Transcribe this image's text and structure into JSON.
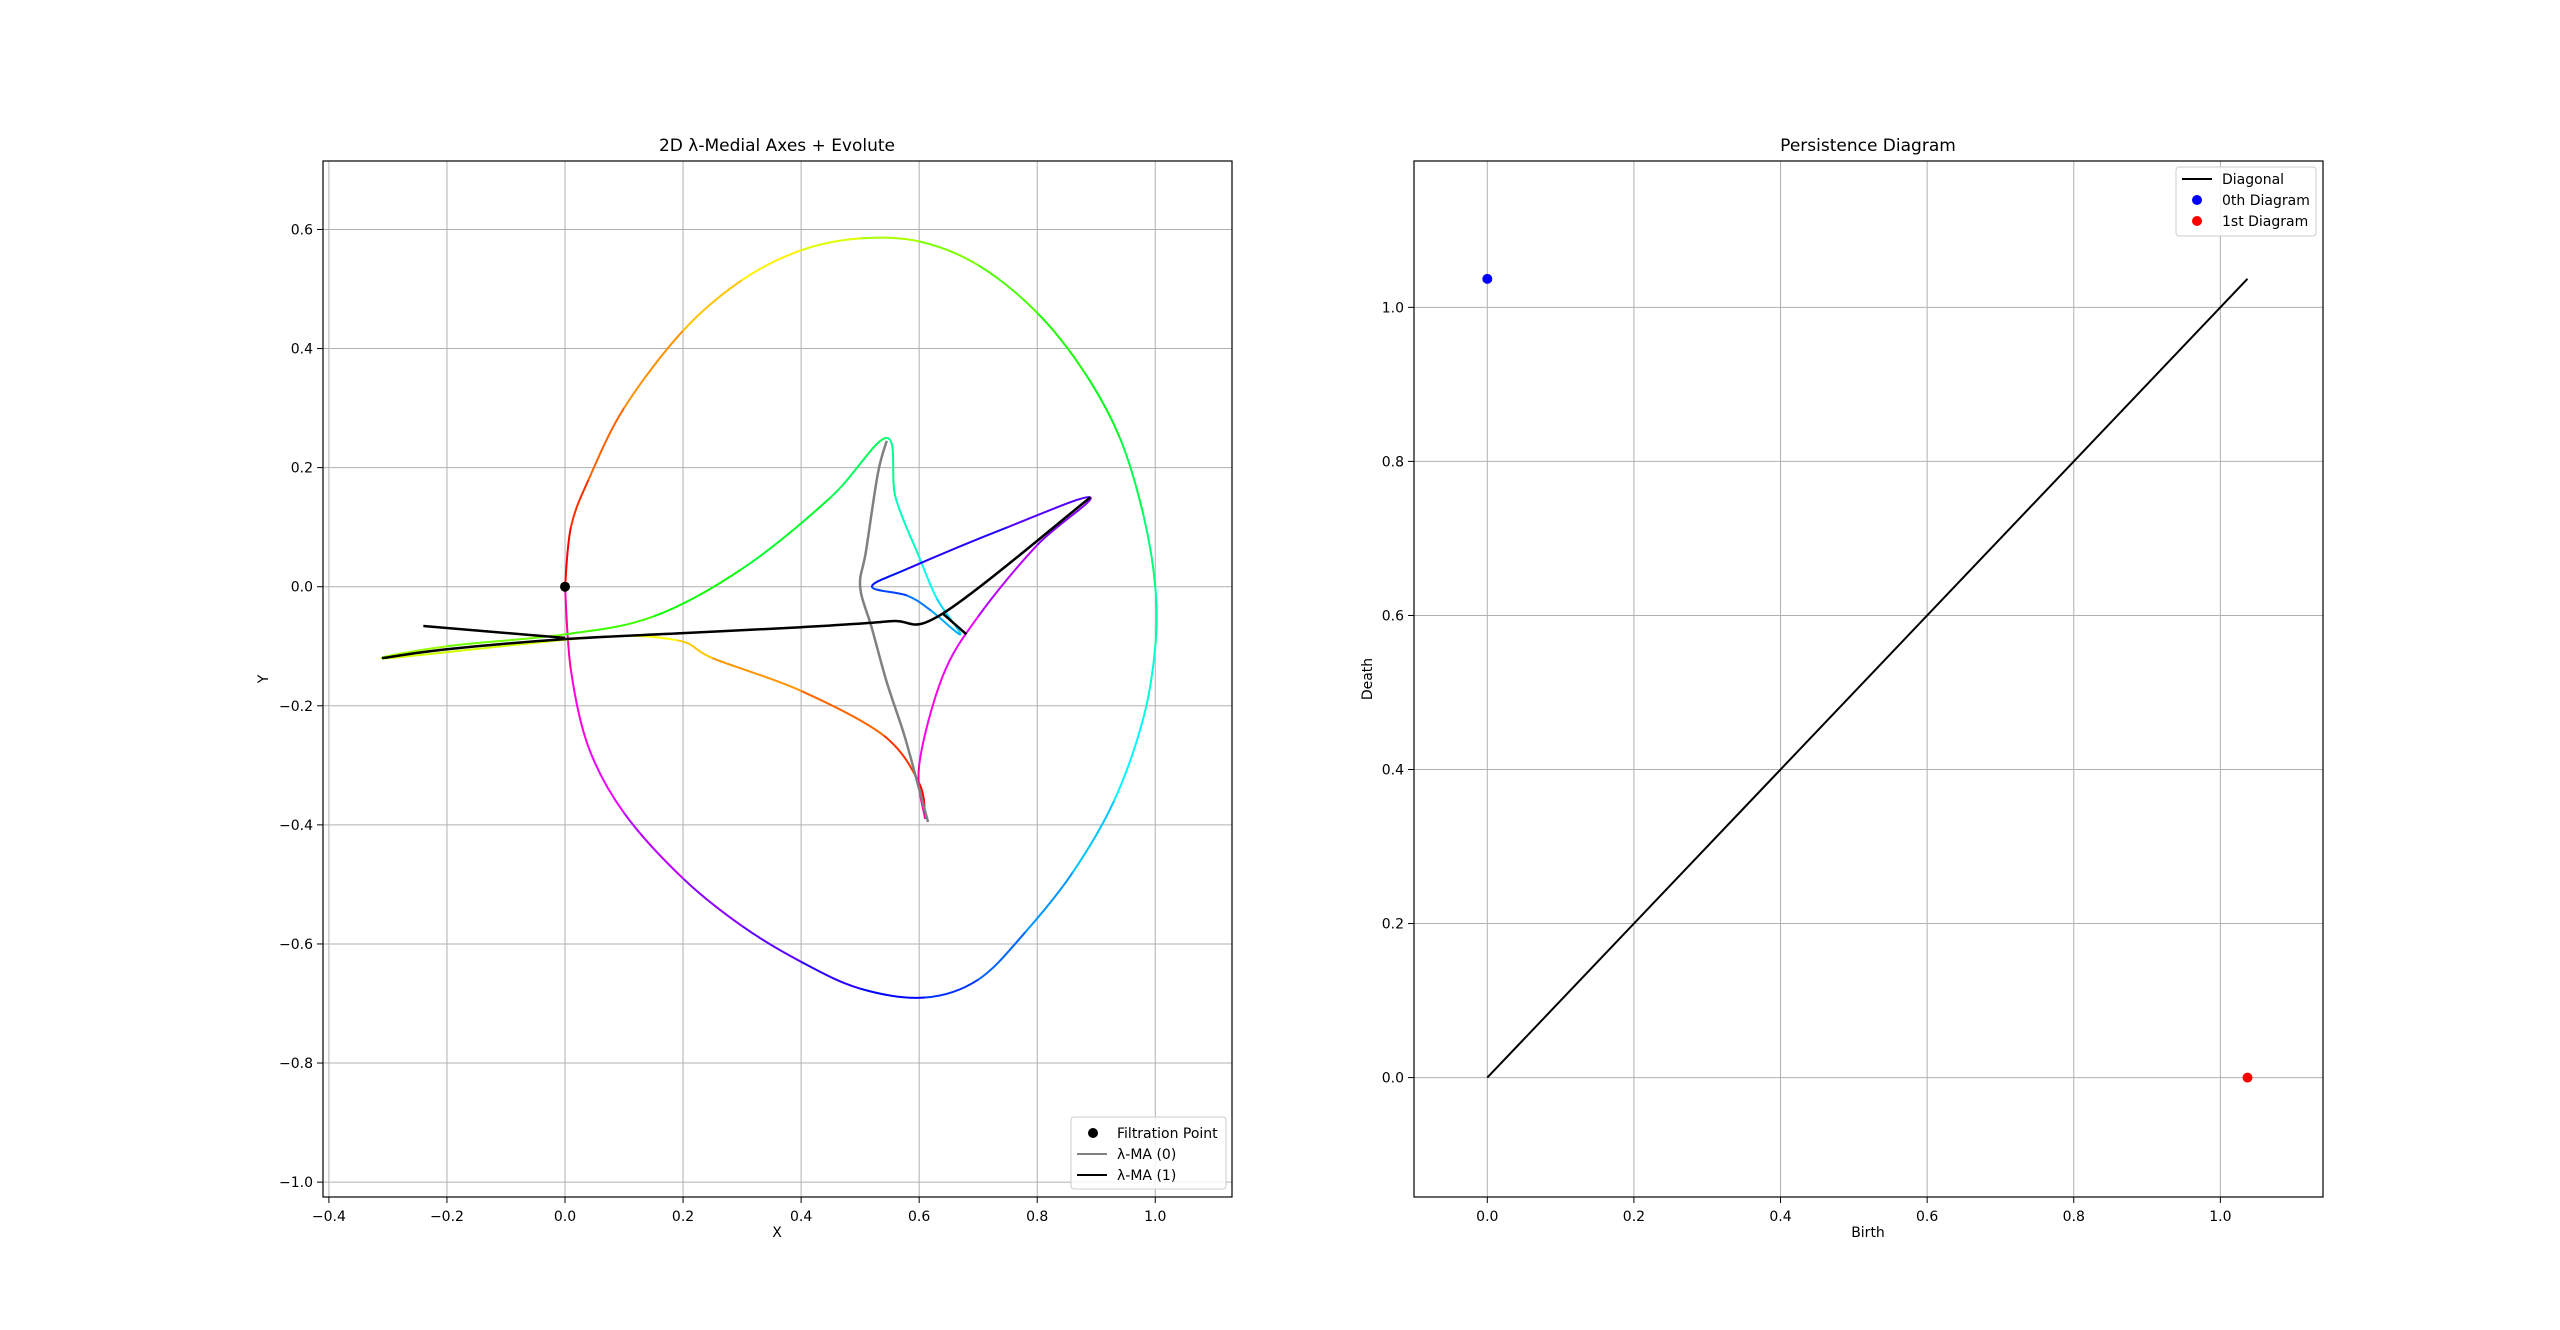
{
  "chart_data": [
    {
      "type": "line",
      "title": "2D λ-Medial Axes + Evolute",
      "xlabel": "X",
      "ylabel": "Y",
      "xlim": [
        -0.41,
        1.13
      ],
      "ylim": [
        -1.025,
        0.715
      ],
      "xticks": [
        -0.4,
        -0.2,
        0.0,
        0.2,
        0.4,
        0.6,
        0.8,
        1.0
      ],
      "xtick_labels": [
        "−0.4",
        "−0.2",
        "0.0",
        "0.2",
        "0.4",
        "0.6",
        "0.8",
        "1.0"
      ],
      "yticks": [
        -1.0,
        -0.8,
        -0.6,
        -0.4,
        -0.2,
        0.0,
        0.2,
        0.4,
        0.6
      ],
      "ytick_labels": [
        "−1.0",
        "−0.8",
        "−0.6",
        "−0.4",
        "−0.2",
        "0.0",
        "0.2",
        "0.4",
        "0.6"
      ],
      "grid": true,
      "legend_position": "lower-right",
      "legend": [
        {
          "label": "Filtration Point",
          "marker": "dot",
          "color": "#000000"
        },
        {
          "label": "λ-MA (0)",
          "marker": "line",
          "color": "#808080"
        },
        {
          "label": "λ-MA (1)",
          "marker": "line",
          "color": "#000000"
        }
      ],
      "curve": {
        "name": "curve",
        "coloring": "hue-gradient",
        "points": [
          [
            0.0,
            0.0
          ],
          [
            0.01,
            0.1
          ],
          [
            0.04,
            0.18
          ],
          [
            0.1,
            0.3
          ],
          [
            0.2,
            0.43
          ],
          [
            0.3,
            0.515
          ],
          [
            0.4,
            0.565
          ],
          [
            0.5,
            0.585
          ],
          [
            0.6,
            0.58
          ],
          [
            0.7,
            0.54
          ],
          [
            0.8,
            0.46
          ],
          [
            0.88,
            0.36
          ],
          [
            0.94,
            0.25
          ],
          [
            0.98,
            0.12
          ],
          [
            1.0,
            0.0
          ],
          [
            1.0,
            -0.1
          ],
          [
            0.98,
            -0.22
          ],
          [
            0.93,
            -0.36
          ],
          [
            0.86,
            -0.48
          ],
          [
            0.78,
            -0.58
          ],
          [
            0.7,
            -0.66
          ],
          [
            0.61,
            -0.69
          ],
          [
            0.5,
            -0.675
          ],
          [
            0.4,
            -0.63
          ],
          [
            0.3,
            -0.57
          ],
          [
            0.2,
            -0.49
          ],
          [
            0.1,
            -0.38
          ],
          [
            0.04,
            -0.27
          ],
          [
            0.01,
            -0.14
          ],
          [
            0.0,
            0.0
          ]
        ]
      },
      "evolute": {
        "name": "evolute",
        "coloring": "hue-gradient",
        "points": [
          [
            0.61,
            -0.39
          ],
          [
            0.6,
            -0.33
          ],
          [
            0.54,
            -0.25
          ],
          [
            0.4,
            -0.175
          ],
          [
            0.25,
            -0.12
          ],
          [
            0.19,
            -0.09
          ],
          [
            0.05,
            -0.085
          ],
          [
            -0.3,
            -0.12
          ],
          [
            -0.2,
            -0.1
          ],
          [
            0.0,
            -0.08
          ],
          [
            0.15,
            -0.05
          ],
          [
            0.3,
            0.03
          ],
          [
            0.45,
            0.15
          ],
          [
            0.545,
            0.25
          ],
          [
            0.56,
            0.15
          ],
          [
            0.6,
            0.05
          ],
          [
            0.63,
            -0.02
          ],
          [
            0.67,
            -0.08
          ],
          [
            0.62,
            -0.04
          ],
          [
            0.58,
            -0.015
          ],
          [
            0.52,
            0.0
          ],
          [
            0.58,
            0.03
          ],
          [
            0.75,
            0.1
          ],
          [
            0.89,
            0.15
          ],
          [
            0.8,
            0.07
          ],
          [
            0.7,
            -0.05
          ],
          [
            0.64,
            -0.15
          ],
          [
            0.6,
            -0.3
          ],
          [
            0.61,
            -0.39
          ]
        ]
      },
      "series": [
        {
          "name": "λ-MA (0)",
          "color": "#808080",
          "points": [
            [
              0.545,
              0.245
            ],
            [
              0.53,
              0.19
            ],
            [
              0.51,
              0.06
            ],
            [
              0.5,
              0.0
            ],
            [
              0.52,
              -0.07
            ],
            [
              0.545,
              -0.16
            ],
            [
              0.575,
              -0.25
            ],
            [
              0.6,
              -0.34
            ],
            [
              0.615,
              -0.395
            ]
          ]
        },
        {
          "name": "λ-MA (1)",
          "color": "#000000",
          "points": [
            [
              -0.31,
              -0.12
            ],
            [
              -0.2,
              -0.105
            ],
            [
              0.0,
              -0.088
            ],
            [
              0.2,
              -0.078
            ],
            [
              0.4,
              -0.068
            ],
            [
              0.55,
              -0.058
            ],
            [
              0.64,
              -0.045
            ],
            [
              0.89,
              0.15
            ]
          ],
          "extra": [
            [
              [
                -0.24,
                -0.066
              ],
              [
                0.0,
                -0.086
              ]
            ],
            [
              [
                0.64,
                -0.045
              ],
              [
                0.68,
                -0.08
              ]
            ]
          ]
        }
      ],
      "filtration_point": {
        "name": "Filtration Point",
        "x": 0.0,
        "y": 0.0
      }
    },
    {
      "type": "scatter",
      "title": "Persistence Diagram",
      "xlabel": "Birth",
      "ylabel": "Death",
      "xlim": [
        -0.1,
        1.14
      ],
      "ylim": [
        -0.155,
        1.19
      ],
      "xticks": [
        0.0,
        0.2,
        0.4,
        0.6,
        0.8,
        1.0
      ],
      "xtick_labels": [
        "0.0",
        "0.2",
        "0.4",
        "0.6",
        "0.8",
        "1.0"
      ],
      "yticks": [
        0.0,
        0.2,
        0.4,
        0.6,
        0.8,
        1.0
      ],
      "ytick_labels": [
        "0.0",
        "0.2",
        "0.4",
        "0.6",
        "0.8",
        "1.0"
      ],
      "grid": true,
      "legend_position": "top-right",
      "legend": [
        {
          "label": "Diagonal",
          "marker": "line",
          "color": "#000000"
        },
        {
          "label": "0th Diagram",
          "marker": "dot",
          "color": "#0000ff"
        },
        {
          "label": "1st Diagram",
          "marker": "dot",
          "color": "#ff0000"
        }
      ],
      "diagonal": {
        "name": "Diagonal",
        "from": [
          0.0,
          0.0
        ],
        "to": [
          1.037,
          1.037
        ]
      },
      "series": [
        {
          "name": "0th Diagram",
          "color": "#0000ff",
          "points": [
            [
              0.0,
              1.037
            ]
          ]
        },
        {
          "name": "1st Diagram",
          "color": "#ff0000",
          "points": [
            [
              1.037,
              0.0
            ]
          ]
        }
      ]
    }
  ]
}
